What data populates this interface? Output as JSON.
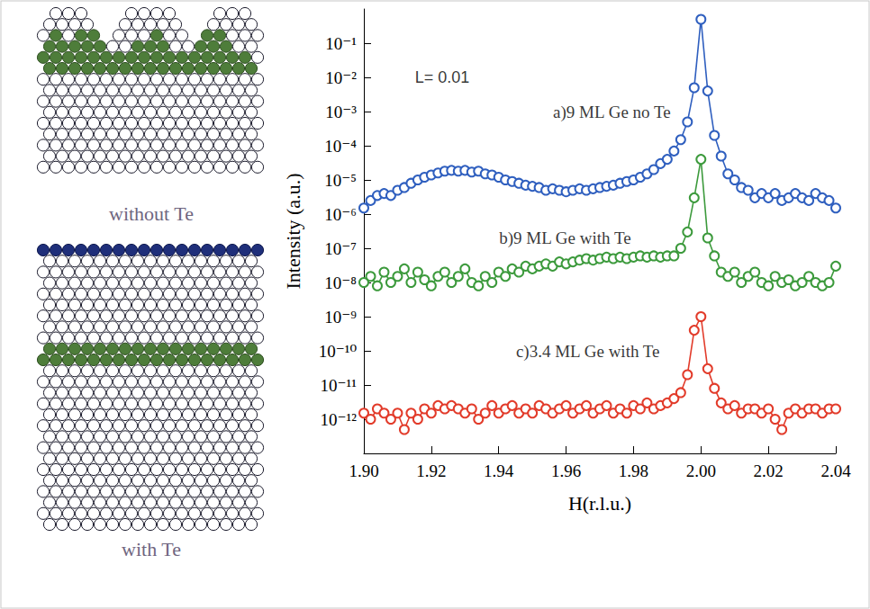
{
  "schematics": [
    {
      "caption": "without Te"
    },
    {
      "caption": "with Te"
    }
  ],
  "chart_data": {
    "type": "line",
    "x_label": "H(r.l.u.)",
    "y_label": "Intensity (a.u.)",
    "log": "y",
    "grid": false,
    "xlim": [
      1.9,
      2.04
    ],
    "xticks": [
      {
        "value": 1.9,
        "label": "1.90"
      },
      1.92,
      1.94,
      1.96,
      1.98,
      {
        "value": 2.0,
        "label": "2.00"
      },
      2.02,
      2.04
    ],
    "ylim": [
      1e-13,
      1
    ],
    "yticks": [
      {
        "value": 1e-12,
        "label": "10⁻¹²"
      },
      {
        "value": 1e-11,
        "label": "10⁻¹¹"
      },
      {
        "value": 1e-10,
        "label": "10⁻¹⁰"
      },
      {
        "value": 1e-09,
        "label": "10⁻⁹"
      },
      {
        "value": 1e-08,
        "label": "10⁻⁸"
      },
      {
        "value": 1e-07,
        "label": "10⁻⁷"
      },
      {
        "value": 1e-06,
        "label": "10⁻⁶"
      },
      {
        "value": 1e-05,
        "label": "10⁻⁵"
      },
      {
        "value": 0.0001,
        "label": "10⁻⁴"
      },
      {
        "value": 0.001,
        "label": "10⁻³"
      },
      {
        "value": 0.01,
        "label": "10⁻²"
      },
      {
        "value": 0.1,
        "label": "10⁻¹"
      }
    ],
    "annotations": [
      {
        "text": "L= 0.01",
        "x": 1.915,
        "y": 0.01
      }
    ],
    "x": [
      1.9,
      1.902,
      1.904,
      1.906,
      1.908,
      1.91,
      1.912,
      1.914,
      1.916,
      1.918,
      1.92,
      1.922,
      1.924,
      1.926,
      1.928,
      1.93,
      1.932,
      1.934,
      1.936,
      1.938,
      1.94,
      1.942,
      1.944,
      1.946,
      1.948,
      1.95,
      1.952,
      1.954,
      1.956,
      1.958,
      1.96,
      1.962,
      1.964,
      1.966,
      1.968,
      1.97,
      1.972,
      1.974,
      1.976,
      1.978,
      1.98,
      1.982,
      1.984,
      1.986,
      1.988,
      1.99,
      1.992,
      1.994,
      1.996,
      1.998,
      2.0,
      2.002,
      2.004,
      2.006,
      2.008,
      2.01,
      2.012,
      2.014,
      2.016,
      2.018,
      2.02,
      2.022,
      2.024,
      2.026,
      2.028,
      2.03,
      2.032,
      2.034,
      2.036,
      2.038,
      2.04
    ],
    "series": [
      {
        "name": "a)9 ML Ge no Te",
        "color": "#2f5fbf",
        "marker": "circle",
        "label_x": 1.956,
        "label_y": 0.001,
        "values": [
          1.5e-06,
          2.5e-06,
          3.5e-06,
          4e-06,
          3.5e-06,
          5e-06,
          6e-06,
          8e-06,
          1e-05,
          1.2e-05,
          1.4e-05,
          1.6e-05,
          1.8e-05,
          1.9e-05,
          1.8e-05,
          1.9e-05,
          1.7e-05,
          1.8e-05,
          1.5e-05,
          1.4e-05,
          1.2e-05,
          1e-05,
          9e-06,
          8e-06,
          7e-06,
          6.5e-06,
          6e-06,
          5e-06,
          5.5e-06,
          5e-06,
          4.5e-06,
          5e-06,
          5.5e-06,
          5e-06,
          5.5e-06,
          6e-06,
          6.5e-06,
          7e-06,
          8e-06,
          9e-06,
          1e-05,
          1.2e-05,
          1.5e-05,
          2e-05,
          3e-05,
          4e-05,
          7e-05,
          0.00015,
          0.0005,
          0.005,
          0.5,
          0.004,
          0.0002,
          5e-05,
          1.5e-05,
          1e-05,
          6e-06,
          5e-06,
          3e-06,
          4e-06,
          3e-06,
          4e-06,
          2.5e-06,
          3e-06,
          4e-06,
          3e-06,
          2.5e-06,
          4e-06,
          3e-06,
          2.5e-06,
          1.5e-06
        ]
      },
      {
        "name": "b)9 ML Ge with Te",
        "color": "#3c9a3c",
        "marker": "circle",
        "label_x": 1.94,
        "label_y": 2e-07,
        "values": [
          1e-08,
          1.5e-08,
          8e-09,
          2e-08,
          1e-08,
          1.5e-08,
          2.5e-08,
          1e-08,
          2e-08,
          1.2e-08,
          8e-09,
          1.5e-08,
          2e-08,
          1e-08,
          1.5e-08,
          2.5e-08,
          1e-08,
          8e-09,
          1.5e-08,
          1e-08,
          2e-08,
          1.5e-08,
          2.5e-08,
          2e-08,
          3e-08,
          2.5e-08,
          3e-08,
          3.5e-08,
          3e-08,
          4e-08,
          3.5e-08,
          4e-08,
          4.5e-08,
          5e-08,
          4.5e-08,
          5e-08,
          5.5e-08,
          5e-08,
          5.5e-08,
          5e-08,
          5.5e-08,
          6e-08,
          5.5e-08,
          6e-08,
          5.5e-08,
          6e-08,
          6e-08,
          1e-07,
          3e-07,
          3e-06,
          4e-05,
          2e-07,
          6e-08,
          2e-08,
          1.5e-08,
          2e-08,
          1e-08,
          1.5e-08,
          2e-08,
          1e-08,
          8e-09,
          1.5e-08,
          1e-08,
          1.2e-08,
          8e-09,
          1e-08,
          1.5e-08,
          1e-08,
          8e-09,
          1e-08,
          3e-08
        ]
      },
      {
        "name": "c)3.4 ML Ge with Te",
        "color": "#e23b2a",
        "marker": "circle",
        "label_x": 1.945,
        "label_y": 1e-10,
        "values": [
          1.5e-12,
          1e-12,
          2e-12,
          1.5e-12,
          1e-12,
          1.5e-12,
          5e-13,
          1.5e-12,
          1e-12,
          2e-12,
          1.5e-12,
          2.5e-12,
          2e-12,
          2.5e-12,
          2e-12,
          1.5e-12,
          2e-12,
          1e-12,
          1.5e-12,
          2.5e-12,
          1.5e-12,
          2e-12,
          2.5e-12,
          1.5e-12,
          2e-12,
          1.5e-12,
          2.5e-12,
          2e-12,
          1.5e-12,
          2e-12,
          2.5e-12,
          1.5e-12,
          2e-12,
          2.5e-12,
          1.5e-12,
          2e-12,
          2.5e-12,
          1.5e-12,
          2e-12,
          1.5e-12,
          2.5e-12,
          2e-12,
          3e-12,
          2e-12,
          2.5e-12,
          3e-12,
          4e-12,
          6e-12,
          2e-11,
          4e-10,
          1e-09,
          3e-11,
          8e-12,
          3e-12,
          2e-12,
          2.5e-12,
          1.5e-12,
          2e-12,
          2e-12,
          1.5e-12,
          2e-12,
          1e-12,
          5e-13,
          1.5e-12,
          2e-12,
          1.5e-12,
          2e-12,
          2e-12,
          1.5e-12,
          2e-12,
          2e-12
        ]
      }
    ]
  }
}
